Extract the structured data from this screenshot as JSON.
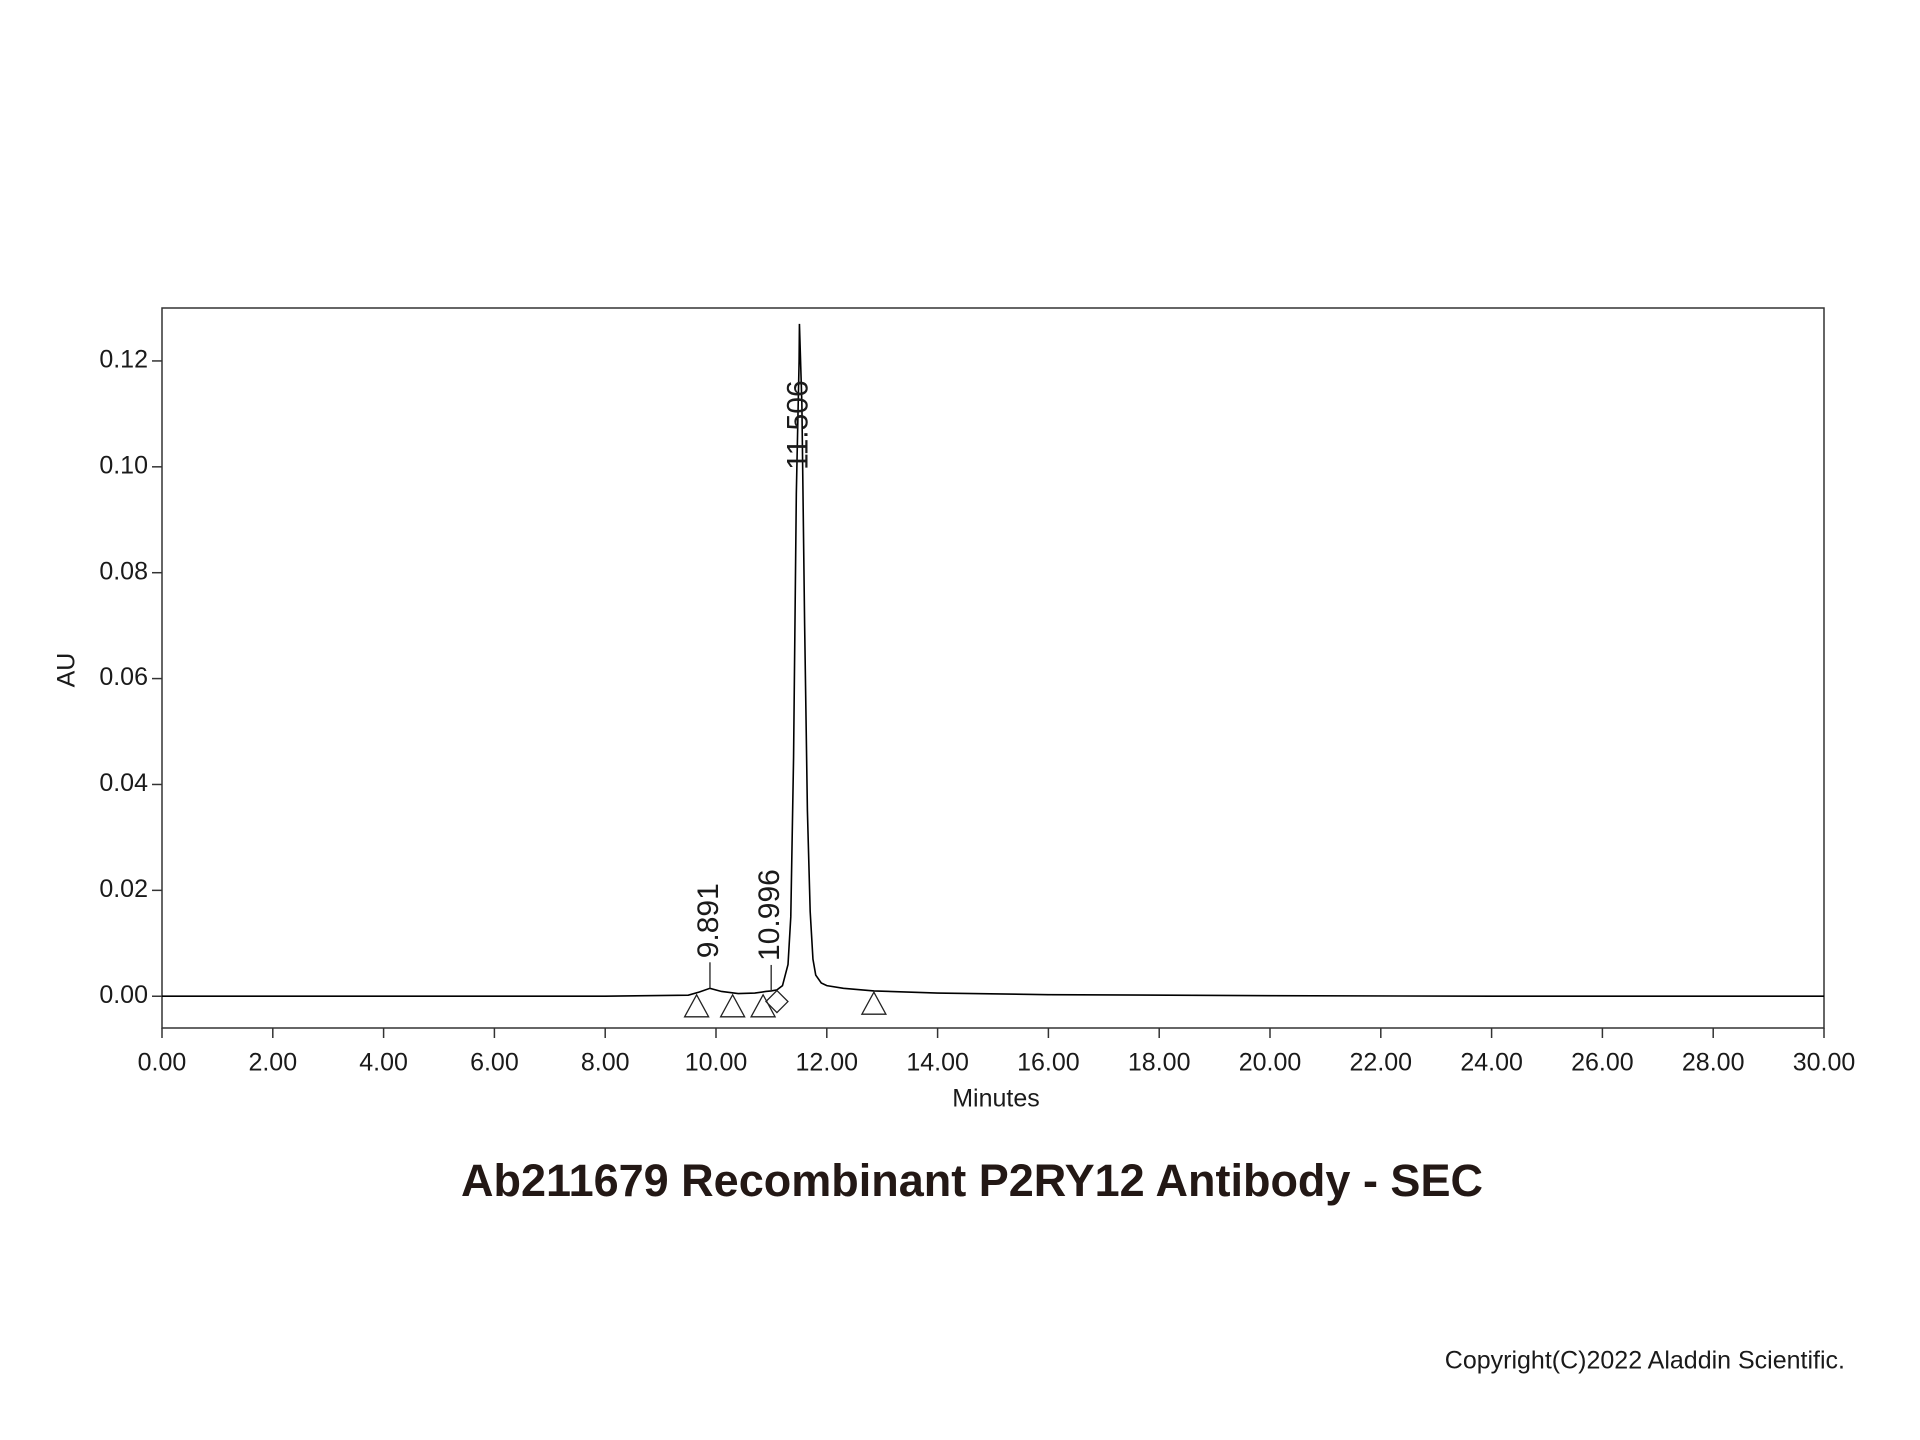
{
  "chart_data": {
    "type": "line",
    "title": "Ab211679 Recombinant P2RY12 Antibody - SEC",
    "xlabel": "Minutes",
    "ylabel": "AU",
    "copyright": "Copyright(C)2022 Aladdin Scientific.",
    "xlim": [
      0,
      30
    ],
    "ylim": [
      -0.006,
      0.13
    ],
    "xticks": [
      {
        "value": 0,
        "label": "0.00"
      },
      {
        "value": 2,
        "label": "2.00"
      },
      {
        "value": 4,
        "label": "4.00"
      },
      {
        "value": 6,
        "label": "6.00"
      },
      {
        "value": 8,
        "label": "8.00"
      },
      {
        "value": 10,
        "label": "10.00"
      },
      {
        "value": 12,
        "label": "12.00"
      },
      {
        "value": 14,
        "label": "14.00"
      },
      {
        "value": 16,
        "label": "16.00"
      },
      {
        "value": 18,
        "label": "18.00"
      },
      {
        "value": 20,
        "label": "20.00"
      },
      {
        "value": 22,
        "label": "22.00"
      },
      {
        "value": 24,
        "label": "24.00"
      },
      {
        "value": 26,
        "label": "26.00"
      },
      {
        "value": 28,
        "label": "28.00"
      },
      {
        "value": 30,
        "label": "30.00"
      }
    ],
    "yticks": [
      {
        "value": 0,
        "label": "0.00"
      },
      {
        "value": 0.02,
        "label": "0.02"
      },
      {
        "value": 0.04,
        "label": "0.04"
      },
      {
        "value": 0.06,
        "label": "0.06"
      },
      {
        "value": 0.08,
        "label": "0.08"
      },
      {
        "value": 0.1,
        "label": "0.10"
      },
      {
        "value": 0.12,
        "label": "0.12"
      }
    ],
    "series": [
      {
        "color": "#000000",
        "x": [
          0,
          2,
          4,
          6,
          8,
          9.5,
          9.7,
          9.891,
          10.1,
          10.4,
          10.7,
          10.9,
          10.996,
          11.1,
          11.2,
          11.3,
          11.35,
          11.4,
          11.45,
          11.5,
          11.506,
          11.55,
          11.6,
          11.65,
          11.7,
          11.75,
          11.8,
          11.9,
          12.0,
          12.3,
          12.85,
          14,
          16,
          20,
          24,
          30
        ],
        "values": [
          0,
          0,
          0,
          0,
          0,
          0.0002,
          0.0008,
          0.0015,
          0.0009,
          0.0005,
          0.0006,
          0.0009,
          0.001,
          0.0012,
          0.002,
          0.006,
          0.015,
          0.045,
          0.095,
          0.12,
          0.127,
          0.112,
          0.07,
          0.035,
          0.016,
          0.007,
          0.004,
          0.0025,
          0.002,
          0.0015,
          0.001,
          0.0006,
          0.0003,
          0.0001,
          0,
          0
        ]
      }
    ],
    "peaks": {
      "x": [
        9.891,
        10.996,
        11.506
      ],
      "y": [
        0.0015,
        0.001,
        0.127
      ]
    },
    "markers": [
      {
        "x": 9.65,
        "y": -0.002,
        "shape": "triangle"
      },
      {
        "x": 10.3,
        "y": -0.002,
        "shape": "triangle"
      },
      {
        "x": 10.85,
        "y": -0.002,
        "shape": "triangle"
      },
      {
        "x": 11.1,
        "y": -0.001,
        "shape": "diamond"
      },
      {
        "x": 12.85,
        "y": -0.0015,
        "shape": "triangle"
      }
    ]
  }
}
